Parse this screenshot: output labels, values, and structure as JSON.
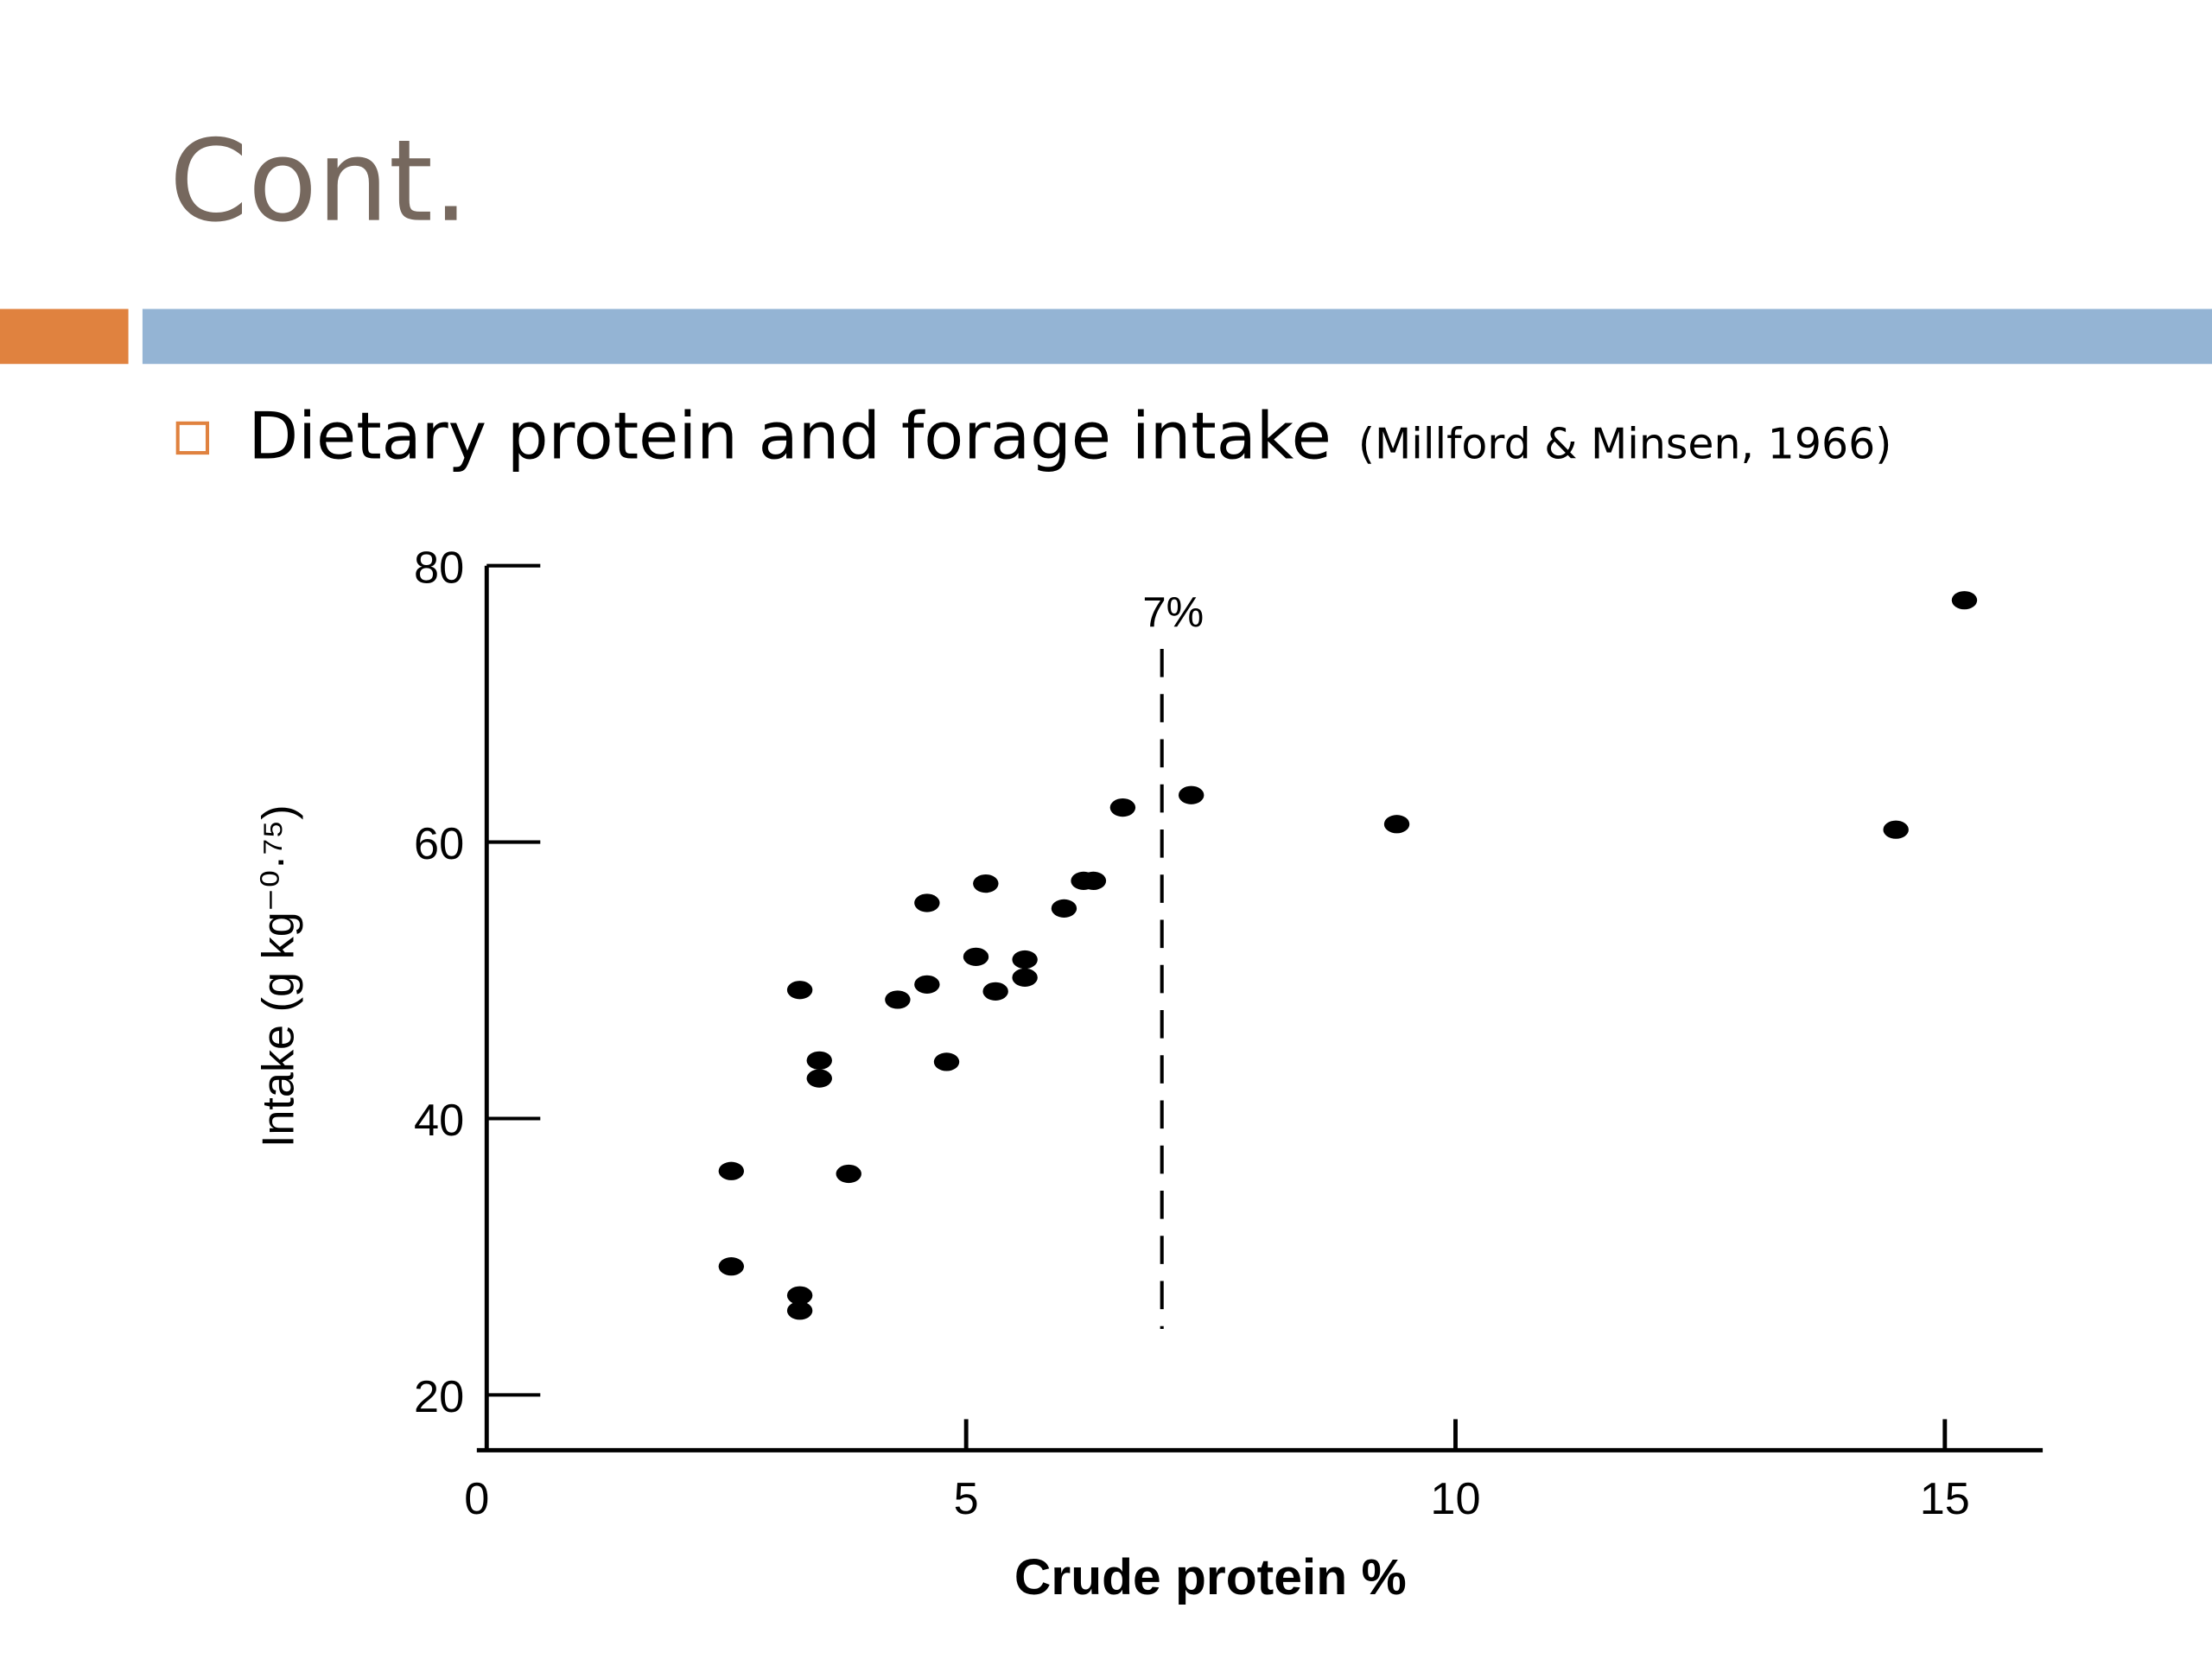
{
  "slide": {
    "title": "Cont.",
    "bullet": "Dietary protein and forage intake",
    "citation": "(Millford & Minsen, 1966)"
  },
  "chart_data": {
    "type": "scatter",
    "xlabel": "Crude protein %",
    "ylabel": "Intake (g kg⁻⁰·⁷⁵)",
    "x": [
      2.6,
      2.6,
      3.3,
      3.3,
      3.3,
      3.5,
      3.5,
      3.8,
      4.3,
      4.6,
      4.6,
      4.8,
      5.2,
      5.1,
      5.3,
      5.6,
      5.6,
      6.0,
      6.2,
      6.3,
      6.6,
      7.3,
      9.4,
      14.5,
      15.2
    ],
    "values": [
      36.2,
      29.3,
      27.2,
      26.1,
      49.3,
      44.2,
      42.9,
      36.0,
      48.6,
      55.6,
      49.7,
      44.1,
      57.0,
      51.7,
      49.2,
      50.2,
      51.5,
      55.2,
      57.2,
      57.2,
      62.5,
      63.4,
      61.3,
      60.9,
      77.5
    ],
    "color": "#000000",
    "xlim": [
      0,
      16
    ],
    "xticks": [
      0,
      5,
      10,
      15
    ],
    "ylim": [
      16,
      80
    ],
    "yticks": [
      20,
      40,
      60,
      80
    ],
    "threshold": {
      "value": 7,
      "label": "7%"
    }
  }
}
